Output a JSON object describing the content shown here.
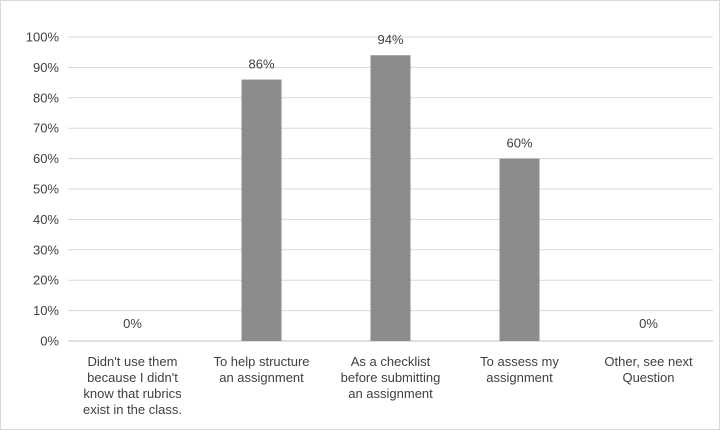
{
  "chart_data": {
    "type": "bar",
    "categories": [
      [
        "Didn't use them",
        "because I didn't",
        "know that rubrics",
        "exist in the class."
      ],
      [
        "To help structure",
        "an assignment"
      ],
      [
        "As a checklist",
        "before submitting",
        "an assignment"
      ],
      [
        "To assess my",
        "assignment"
      ],
      [
        "Other, see next",
        "Question"
      ]
    ],
    "values": [
      0,
      86,
      94,
      60,
      0
    ],
    "data_labels": [
      "0%",
      "86%",
      "94%",
      "60%",
      "0%"
    ],
    "ylim": [
      0,
      100
    ],
    "yticks": [
      "0%",
      "10%",
      "20%",
      "30%",
      "40%",
      "50%",
      "60%",
      "70%",
      "80%",
      "90%",
      "100%"
    ],
    "grid": true,
    "legend": "none",
    "colors": {
      "bar": "#8c8c8c",
      "grid": "#d9d9d9",
      "axis": "#bfbfbf",
      "text": "#404040"
    }
  }
}
